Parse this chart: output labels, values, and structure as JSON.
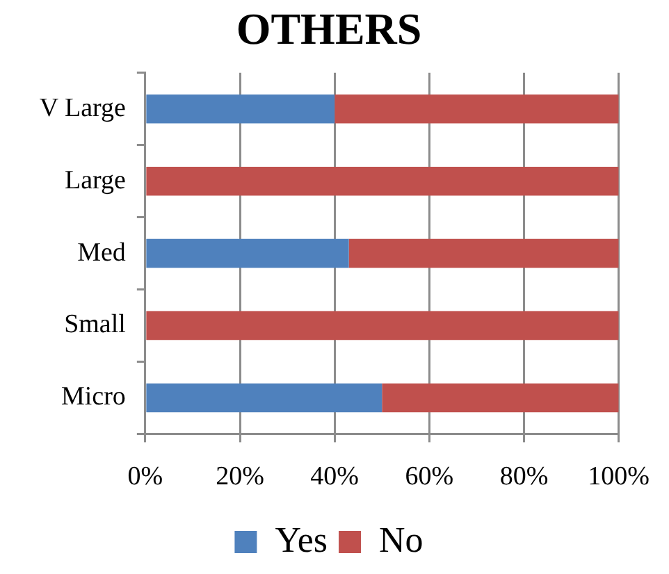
{
  "chart_data": {
    "type": "bar",
    "title": "OTHERS",
    "orientation": "horizontal",
    "stacked": true,
    "categories": [
      "V Large",
      "Large",
      "Med",
      "Small",
      "Micro"
    ],
    "series": [
      {
        "name": "Yes",
        "color": "#4f81bd",
        "values": [
          40,
          0,
          43,
          0,
          50
        ]
      },
      {
        "name": "No",
        "color": "#c0504d",
        "values": [
          60,
          100,
          57,
          100,
          50
        ]
      }
    ],
    "xlim": [
      0,
      100
    ],
    "xticks": [
      {
        "value": 0,
        "label": "0%"
      },
      {
        "value": 20,
        "label": "20%"
      },
      {
        "value": 40,
        "label": "40%"
      },
      {
        "value": 60,
        "label": "60%"
      },
      {
        "value": 80,
        "label": "80%"
      },
      {
        "value": 100,
        "label": "100%"
      }
    ],
    "grid": "x",
    "legend": "bottom"
  }
}
